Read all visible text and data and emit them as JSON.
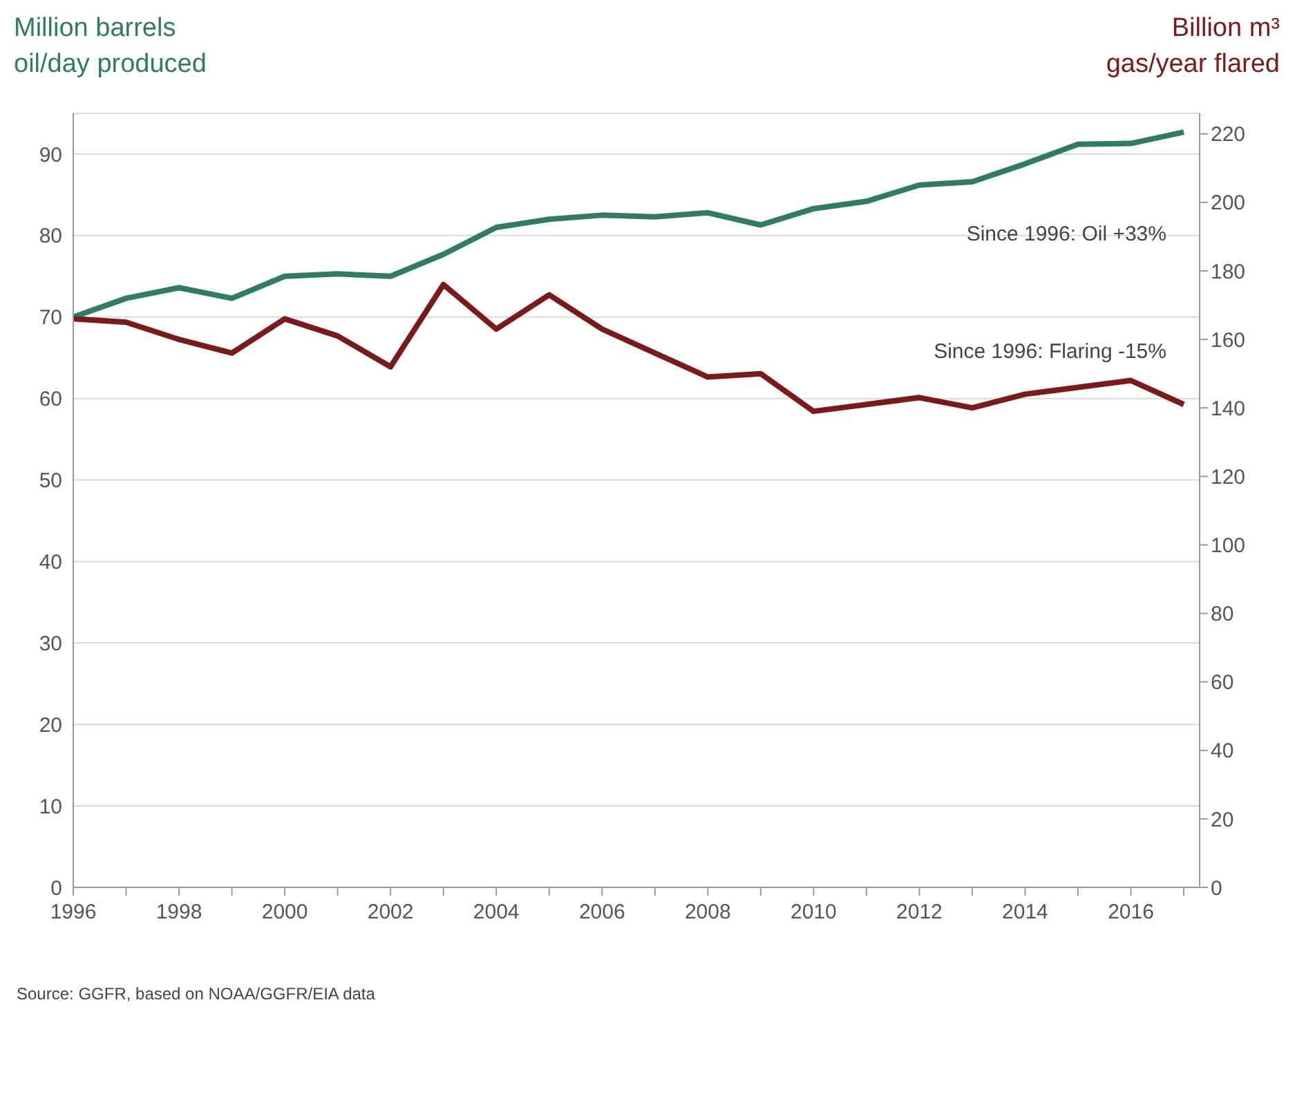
{
  "chart_data": {
    "type": "line",
    "ylabel": "Million barrels\noil/day produced",
    "y2label": "Billion m³\ngas/year flared",
    "x": [
      1996,
      1997,
      1998,
      1999,
      2000,
      2001,
      2002,
      2003,
      2004,
      2005,
      2006,
      2007,
      2008,
      2009,
      2010,
      2011,
      2012,
      2013,
      2014,
      2015,
      2016,
      2017
    ],
    "series": [
      {
        "color": "#2e7d5b",
        "values": [
          70,
          72.3,
          73.6,
          72.3,
          75,
          75.3,
          75,
          77.7,
          81,
          82,
          82.5,
          82.3,
          82.8,
          81.3,
          83.3,
          84.2,
          86.2,
          86.6,
          88.8,
          91.2,
          91.3,
          92.7
        ]
      },
      {
        "color": "#7a1a1a",
        "axis": "y2",
        "values": [
          166,
          165,
          160,
          156,
          166,
          161,
          152,
          176,
          163,
          173,
          163,
          156,
          149,
          150,
          139,
          141,
          143,
          140,
          144,
          146,
          148,
          141
        ]
      }
    ],
    "xlim": [
      1996,
      2017.3
    ],
    "xticks": [
      1996,
      {
        "value": 1997,
        "label": null
      },
      1998,
      {
        "value": 1999,
        "label": null
      },
      2000,
      {
        "value": 2001,
        "label": null
      },
      2002,
      {
        "value": 2003,
        "label": null
      },
      2004,
      {
        "value": 2005,
        "label": null
      },
      2006,
      {
        "value": 2007,
        "label": null
      },
      2008,
      {
        "value": 2009,
        "label": null
      },
      2010,
      {
        "value": 2011,
        "label": null
      },
      2012,
      {
        "value": 2013,
        "label": null
      },
      2014,
      {
        "value": 2015,
        "label": null
      },
      2016,
      {
        "value": 2017,
        "label": null
      }
    ],
    "ylim": [
      0,
      95
    ],
    "yticks": [
      0,
      10,
      20,
      30,
      40,
      50,
      60,
      70,
      80,
      90
    ],
    "y2lim": [
      0,
      226
    ],
    "y2ticks": [
      0,
      20,
      40,
      60,
      80,
      100,
      120,
      140,
      160,
      180,
      200,
      220
    ],
    "grid": "y",
    "legend": false,
    "marker": "none",
    "line_style": "solid",
    "annotations": [
      "Since 1996: Oil +33%",
      "Since 1996: Flaring -15%",
      "Source: GGFR, based on NOAA/GGFR/EIA data"
    ]
  }
}
